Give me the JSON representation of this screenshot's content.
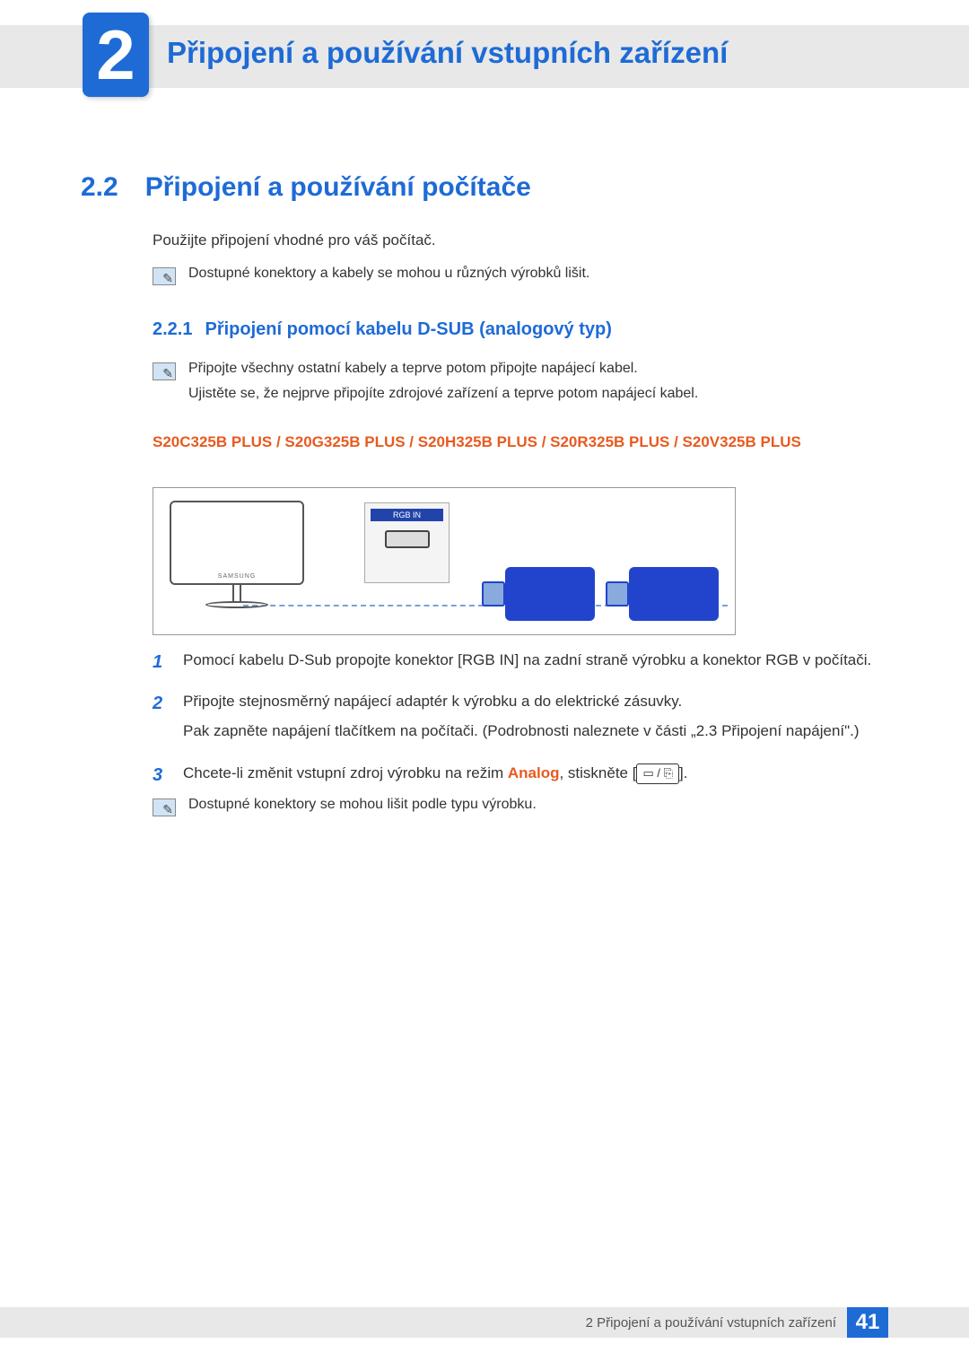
{
  "chapter": {
    "number": "2",
    "title": "Připojení a používání vstupních zařízení"
  },
  "section": {
    "number": "2.2",
    "title": "Připojení a používání počítače"
  },
  "intro": "Použijte připojení vhodné pro váš počítač.",
  "note1": "Dostupné konektory a kabely se mohou u různých výrobků lišit.",
  "subsection": {
    "number": "2.2.1",
    "title": "Připojení pomocí kabelu D-SUB (analogový typ)"
  },
  "note2_line1": "Připojte všechny ostatní kabely a teprve potom připojte napájecí kabel.",
  "note2_line2": "Ujistěte se, že nejprve připojíte zdrojové zařízení a teprve potom napájecí kabel.",
  "models_heading": "S20C325B PLUS / S20G325B PLUS / S20H325B PLUS / S20R325B PLUS / S20V325B PLUS",
  "diagram": {
    "monitor_brand": "SAMSUNG",
    "port_label": "RGB IN"
  },
  "steps": [
    {
      "num": "1",
      "text": "Pomocí kabelu D-Sub propojte konektor [RGB IN] na zadní straně výrobku a konektor RGB v počítači."
    },
    {
      "num": "2",
      "text_a": "Připojte stejnosměrný napájecí adaptér k výrobku a do elektrické zásuvky.",
      "text_b": "Pak zapněte napájení tlačítkem na počítači. (Podrobnosti naleznete v části „2.3 Připojení napájení\".)"
    },
    {
      "num": "3",
      "text_pre": "Chcete-li změnit vstupní zdroj výrobku na režim ",
      "analog_label": "Analog",
      "text_mid": ", stiskněte [",
      "button_glyphs": "▭ / ⎘",
      "text_post": "]."
    }
  ],
  "note3": "Dostupné konektory se mohou lišit podle typu výrobku.",
  "footer": {
    "text": "2 Připojení a používání vstupních zařízení",
    "page": "41"
  },
  "colors": {
    "brand_blue": "#1e6bd6",
    "accent_orange": "#e85a1f",
    "band_gray": "#e8e8e8",
    "connector_blue": "#2244cc"
  }
}
